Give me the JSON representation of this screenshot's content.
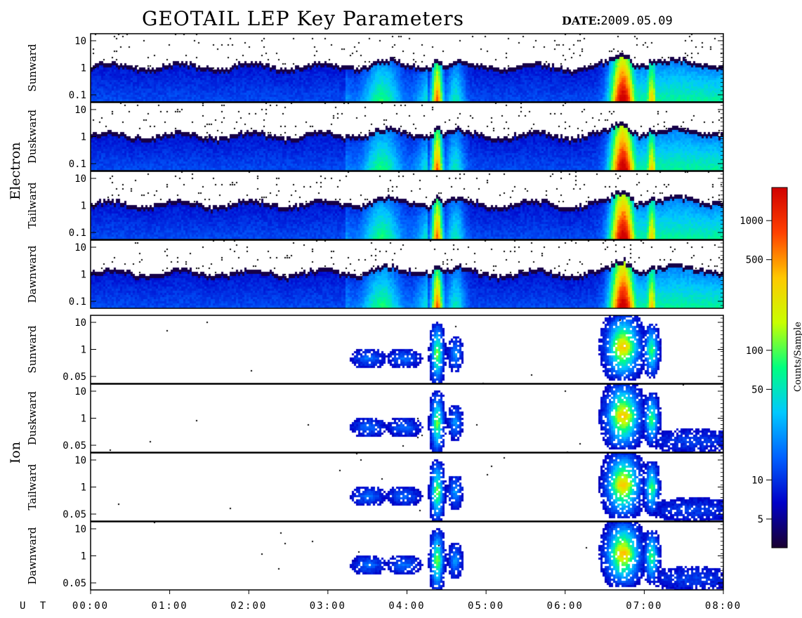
{
  "header": {
    "title": "GEOTAIL LEP Key Parameters",
    "date_label": "DATE:",
    "date_value": "2009.05.09"
  },
  "chart_data": {
    "type": "heatmap",
    "title": "GEOTAIL LEP Key Parameters",
    "x_axis": {
      "label": "U T",
      "range": [
        "00:00",
        "08:00"
      ],
      "ticks": [
        "00:00",
        "01:00",
        "02:00",
        "03:00",
        "04:00",
        "05:00",
        "06:00",
        "07:00",
        "08:00"
      ]
    },
    "groups": [
      {
        "name": "Electron",
        "panels": [
          {
            "name": "Sunward",
            "y_ticks": [
              "10",
              "1",
              "0.1"
            ],
            "y_scale": "log"
          },
          {
            "name": "Duskward",
            "y_ticks": [
              "10",
              "1",
              "0.1"
            ],
            "y_scale": "log"
          },
          {
            "name": "Tailward",
            "y_ticks": [
              "10",
              "1",
              "0.1"
            ],
            "y_scale": "log"
          },
          {
            "name": "Dawnward",
            "y_ticks": [
              "10",
              "1",
              "0.1"
            ],
            "y_scale": "log"
          }
        ]
      },
      {
        "name": "Ion",
        "panels": [
          {
            "name": "Sunward",
            "y_ticks": [
              "10",
              "1",
              "0.05"
            ],
            "y_scale": "log"
          },
          {
            "name": "Duskward",
            "y_ticks": [
              "10",
              "1",
              "0.05"
            ],
            "y_scale": "log"
          },
          {
            "name": "Tailward",
            "y_ticks": [
              "10",
              "1",
              "0.05"
            ],
            "y_scale": "log"
          },
          {
            "name": "Dawnward",
            "y_ticks": [
              "10",
              "1",
              "0.05"
            ],
            "y_scale": "log"
          }
        ]
      }
    ],
    "colorbar": {
      "label": "Counts/Sample",
      "scale": "log",
      "range": [
        3,
        1800
      ],
      "ticks": [
        {
          "value": 5,
          "label": "5"
        },
        {
          "value": 10,
          "label": "10"
        },
        {
          "value": 50,
          "label": "50"
        },
        {
          "value": 100,
          "label": "100"
        },
        {
          "value": 500,
          "label": "500"
        },
        {
          "value": 1000,
          "label": "1000"
        }
      ],
      "colors": [
        "#1a0030",
        "#0000c8",
        "#0060ff",
        "#00c8ff",
        "#00ff80",
        "#c8ff00",
        "#ffc800",
        "#ff4000",
        "#d00000"
      ]
    },
    "features": {
      "electron_bursts_ut_hours": [
        4.37,
        6.7,
        7.08
      ],
      "ion_bursts_ut_hours": [
        3.55,
        3.95,
        4.37,
        4.6,
        6.7,
        7.08
      ],
      "ion_extended_activity_ut_hours": [
        6.55,
        8.0
      ]
    }
  }
}
